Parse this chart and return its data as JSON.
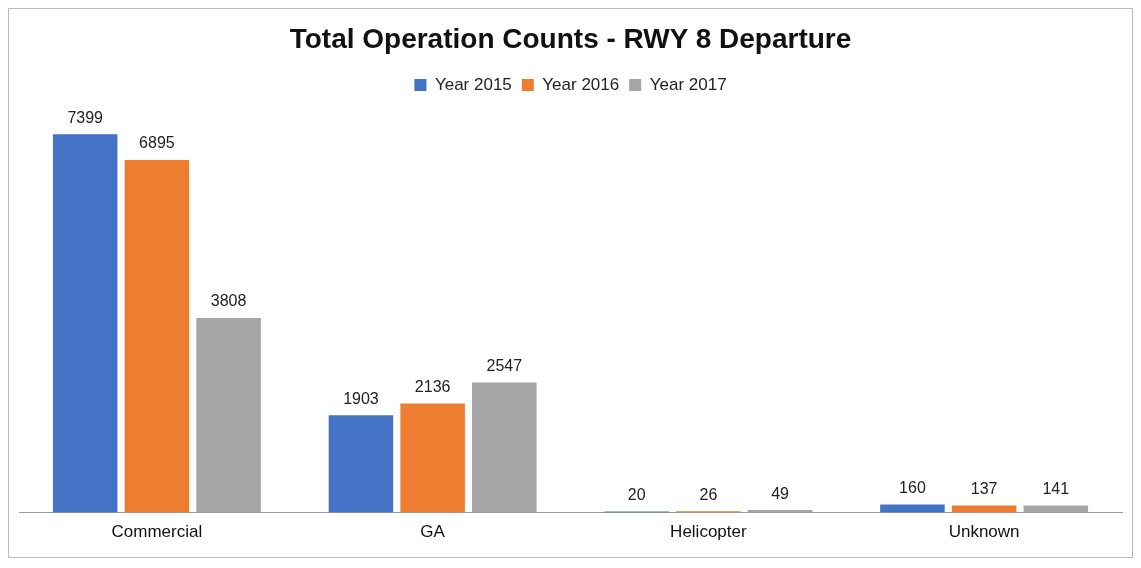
{
  "chart_data": {
    "type": "bar",
    "title": "Total Operation Counts - RWY 8 Departure",
    "categories": [
      "Commercial",
      "GA",
      "Helicopter",
      "Unknown"
    ],
    "series": [
      {
        "name": "Year 2015",
        "color": "#4472c4",
        "values": [
          7399,
          1903,
          20,
          160
        ]
      },
      {
        "name": "Year 2016",
        "color": "#ed7d31",
        "values": [
          6895,
          2136,
          26,
          137
        ]
      },
      {
        "name": "Year 2017",
        "color": "#a5a5a5",
        "values": [
          3808,
          2547,
          49,
          141
        ]
      }
    ],
    "data_labels": true,
    "legend": "top",
    "grid": false,
    "tick_labels": "x"
  }
}
